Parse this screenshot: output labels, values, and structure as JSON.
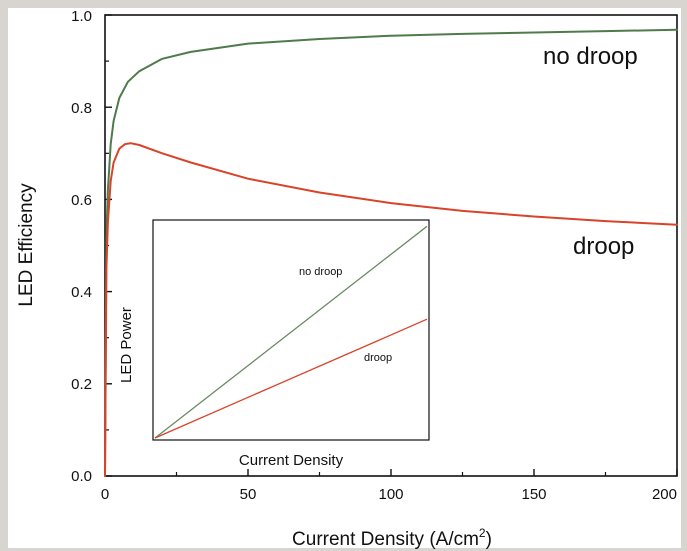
{
  "chart_data": [
    {
      "type": "line",
      "xlabel": "Current Density (A/cm",
      "xlabel_superscript": "2",
      "xlabel_suffix": ")",
      "ylabel": "LED Efficiency",
      "xlim": [
        0,
        200
      ],
      "ylim": [
        0.0,
        1.0
      ],
      "xticks": [
        0,
        50,
        100,
        150,
        200
      ],
      "xtick_labels": [
        "0",
        "50",
        "100",
        "150",
        "200"
      ],
      "yticks": [
        0.0,
        0.2,
        0.4,
        0.6,
        0.8,
        1.0
      ],
      "ytick_labels": [
        "0.0",
        "0.2",
        "0.4",
        "0.6",
        "0.8",
        "1.0"
      ],
      "grid": false,
      "series": [
        {
          "name": "no droop",
          "color": "#4f7a4a",
          "x": [
            0,
            0.5,
            1,
            2,
            3,
            5,
            8,
            12,
            20,
            30,
            50,
            75,
            100,
            125,
            150,
            175,
            200
          ],
          "y": [
            0.0,
            0.52,
            0.62,
            0.72,
            0.77,
            0.82,
            0.855,
            0.878,
            0.905,
            0.92,
            0.938,
            0.948,
            0.955,
            0.959,
            0.962,
            0.965,
            0.968
          ]
        },
        {
          "name": "droop",
          "color": "#d9432a",
          "x": [
            0,
            0.5,
            1,
            2,
            3,
            5,
            7,
            9,
            12,
            20,
            30,
            50,
            75,
            100,
            125,
            150,
            175,
            200
          ],
          "y": [
            0.0,
            0.45,
            0.55,
            0.64,
            0.68,
            0.71,
            0.72,
            0.722,
            0.718,
            0.7,
            0.68,
            0.645,
            0.615,
            0.592,
            0.575,
            0.563,
            0.553,
            0.545
          ]
        }
      ]
    },
    {
      "type": "line",
      "inset": true,
      "xlabel": "Current Density",
      "ylabel": "LED Power",
      "xlim": [
        0,
        1
      ],
      "ylim": [
        0,
        1
      ],
      "series": [
        {
          "name": "no droop",
          "color": "#6b8a63",
          "x": [
            0,
            1
          ],
          "y": [
            0,
            0.98
          ]
        },
        {
          "name": "droop",
          "color": "#d9432a",
          "x": [
            0,
            1
          ],
          "y": [
            0,
            0.55
          ]
        }
      ]
    }
  ]
}
